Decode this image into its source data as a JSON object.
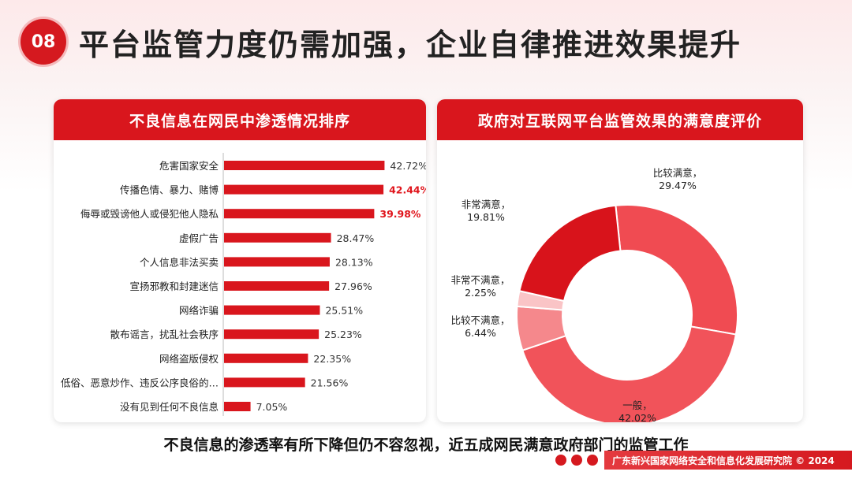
{
  "header": {
    "badge": "08",
    "title": "平台监管力度仍需加强，企业自律推进效果提升"
  },
  "left_panel": {
    "title": "不良信息在网民中渗透情况排序"
  },
  "right_panel": {
    "title": "政府对互联网平台监管效果的满意度评价"
  },
  "bottom_text": "不良信息的渗透率有所下降但仍不容忽视，近五成网民满意政府部门的监管工作",
  "footer": "广东新兴国家网络安全和信息化发展研究院 © 2024",
  "colors": {
    "accent": "#d9161d",
    "highlight": "#e0141b"
  },
  "chart_data": [
    {
      "type": "bar",
      "orientation": "horizontal",
      "categories": [
        "危害国家安全",
        "传播色情、暴力、赌博",
        "侮辱或毁谤他人或侵犯他人隐私",
        "虚假广告",
        "个人信息非法买卖",
        "宣扬邪教和封建迷信",
        "网络诈骗",
        "散布谣言，扰乱社会秩序",
        "网络盗版侵权",
        "低俗、恶意炒作、违反公序良俗的…",
        "没有见到任何不良信息"
      ],
      "values": [
        42.72,
        42.44,
        39.98,
        28.47,
        28.13,
        27.96,
        25.51,
        25.23,
        22.35,
        21.56,
        7.05
      ],
      "labels": [
        "42.72%",
        "42.44%",
        "39.98%",
        "28.47%",
        "28.13%",
        "27.96%",
        "25.51%",
        "25.23%",
        "22.35%",
        "21.56%",
        "7.05%"
      ],
      "highlighted": [
        1,
        2
      ],
      "xlim": [
        0,
        50
      ]
    },
    {
      "type": "pie",
      "donut": true,
      "slices": [
        {
          "name": "比较满意",
          "value": 29.47,
          "label": "29.47%",
          "color": "#f04b52"
        },
        {
          "name": "一般",
          "value": 42.02,
          "label": "42.02%",
          "color": "#f1535a"
        },
        {
          "name": "比较不满意",
          "value": 6.44,
          "label": "6.44%",
          "color": "#f5888c"
        },
        {
          "name": "非常不满意",
          "value": 2.25,
          "label": "2.25%",
          "color": "#fac4c6"
        },
        {
          "name": "非常满意",
          "value": 19.81,
          "label": "19.81%",
          "color": "#d8131b"
        }
      ]
    }
  ]
}
